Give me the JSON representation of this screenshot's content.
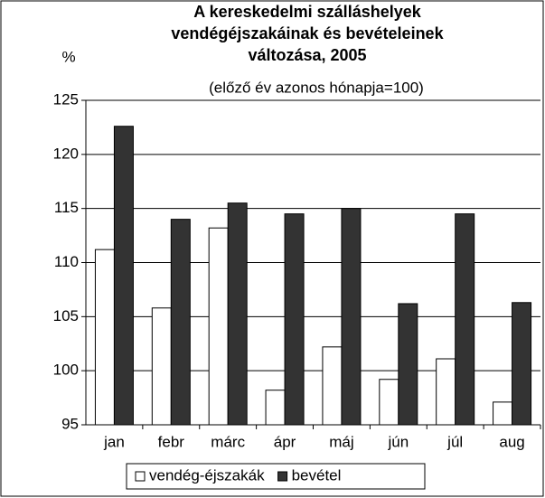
{
  "chart_data": {
    "type": "bar",
    "title": [
      "A kereskedelmi szálláshelyek",
      "vendégéjszakáinak és bevételeinek",
      "változása, 2005"
    ],
    "subtitle": "(előző év azonos hónapja=100)",
    "y_label": "%",
    "categories": [
      "jan",
      "febr",
      "márc",
      "ápr",
      "máj",
      "jún",
      "júl",
      "aug"
    ],
    "series": [
      {
        "name": "vendég-éjszakák",
        "color": "#ffffff",
        "values": [
          111.2,
          105.8,
          113.2,
          98.2,
          102.2,
          99.2,
          101.1,
          97.1
        ]
      },
      {
        "name": "bevétel",
        "color": "#333333",
        "values": [
          122.6,
          114.0,
          115.5,
          114.5,
          115.0,
          106.2,
          114.5,
          106.3
        ]
      }
    ],
    "ylim": [
      95,
      125
    ],
    "yticks": [
      95,
      100,
      105,
      110,
      115,
      120,
      125
    ],
    "grid": true,
    "legend": "bottom"
  }
}
